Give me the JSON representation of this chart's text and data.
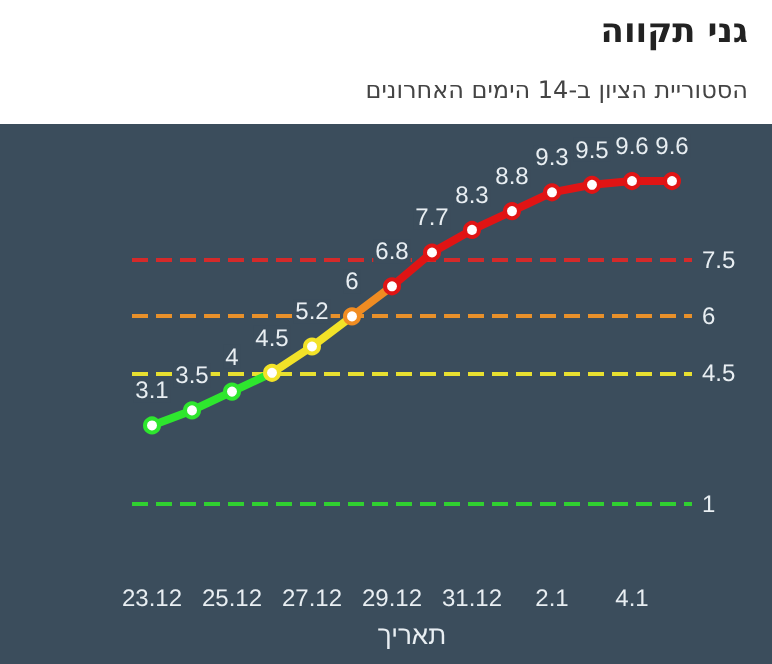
{
  "chart_data": {
    "type": "line",
    "title": "גני תקווה",
    "subtitle": "הסטוריית הציון ב-14 הימים האחרונים",
    "xlabel": "תאריך",
    "categories": [
      "23.12",
      null,
      "25.12",
      null,
      "27.12",
      null,
      "29.12",
      null,
      "31.12",
      null,
      "2.1",
      null,
      "4.1",
      null
    ],
    "series": [
      {
        "values": [
          3.1,
          3.5,
          4,
          4.5,
          5.2,
          6,
          6.8,
          7.7,
          8.3,
          8.8,
          9.3,
          9.5,
          9.6,
          9.6
        ],
        "colors": [
          "#2ee62e",
          "#2ee62e",
          "#2ee62e",
          "#f2e228",
          "#f2e228",
          "#f08c22",
          "#e01414",
          "#e01414",
          "#e01414",
          "#e01414",
          "#e01414",
          "#e01414",
          "#e01414",
          "#e01414"
        ]
      }
    ],
    "ref_lines": [
      {
        "axis": "y",
        "value": 7.5,
        "label": "7.5",
        "color": "#d42a2a",
        "line_style": "dashed"
      },
      {
        "axis": "y",
        "value": 6,
        "label": "6",
        "color": "#e8902a",
        "line_style": "dashed"
      },
      {
        "axis": "y",
        "value": 4.5,
        "label": "4.5",
        "color": "#e8e030",
        "line_style": "dashed"
      },
      {
        "axis": "y",
        "value": 1,
        "label": "1",
        "color": "#30d030",
        "line_style": "dashed"
      }
    ],
    "data_labels": true,
    "marker": "circle",
    "line_style": "solid",
    "grid": false,
    "tick_labels": "x"
  }
}
